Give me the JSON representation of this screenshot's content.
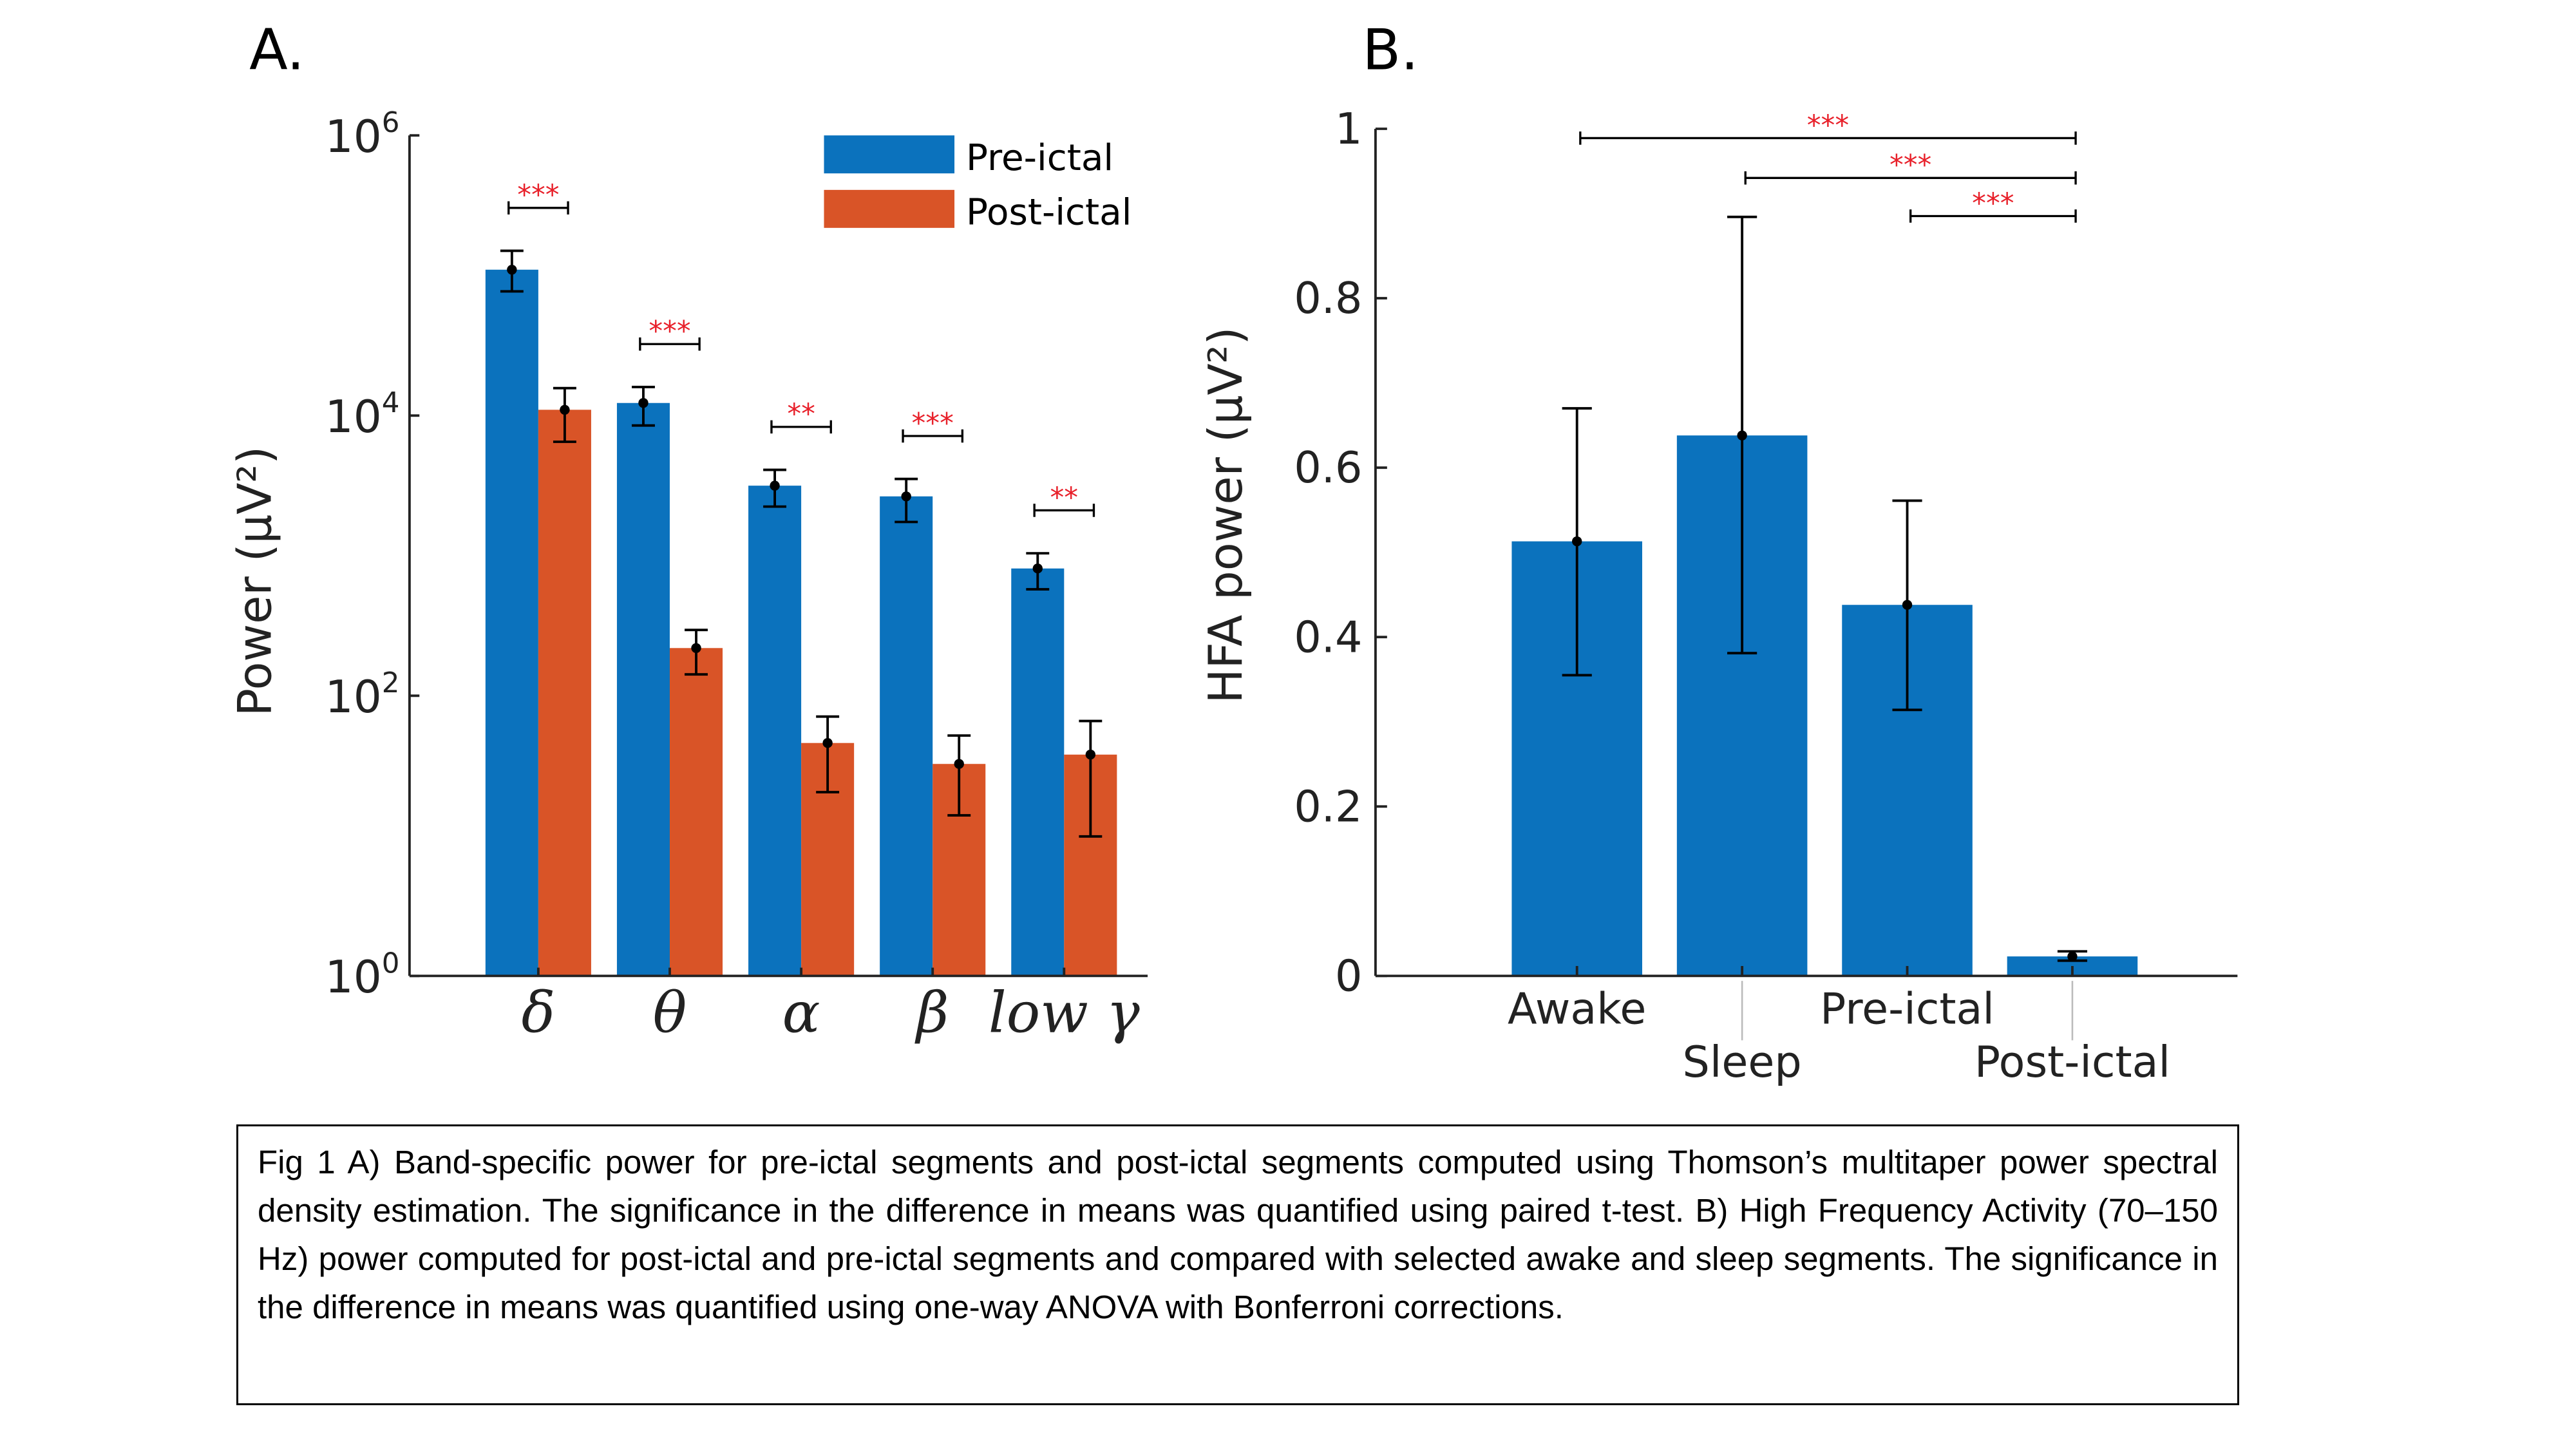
{
  "figure": {
    "panel_a_label": "A.",
    "panel_b_label": "B.",
    "caption": "Fig 1 A) Band-specific power for pre-ictal segments and post-ictal segments computed using Thomson’s multitaper power spectral density estimation. The significance in the difference in means was quantified using paired t-test. B) High Frequency Activity (70–150 Hz) power computed for post-ictal and pre-ictal segments and compared with selected awake and sleep segments. The significance in the difference in means was quantified using one-way ANOVA with Bonferroni corrections."
  },
  "chart_data": [
    {
      "type": "bar",
      "panel": "A",
      "ylabel": "Power (µV²)",
      "yscale": "log",
      "ylim": [
        1,
        1000000
      ],
      "yticks": [
        1,
        100,
        10000,
        1000000
      ],
      "ytick_labels": [
        [
          "10",
          "0"
        ],
        [
          "10",
          "2"
        ],
        [
          "10",
          "4"
        ],
        [
          "10",
          "6"
        ]
      ],
      "categories": [
        "δ",
        "θ",
        "α",
        "β",
        "low γ"
      ],
      "legend_position": "top-right",
      "series": [
        {
          "name": "Pre-ictal",
          "color": "#0b72bd",
          "values": [
            110000,
            12300,
            3160,
            2650,
            810
          ],
          "err_high": [
            150000,
            16000,
            4100,
            3530,
            1040
          ],
          "err_low": [
            77000,
            8500,
            2240,
            1740,
            575
          ]
        },
        {
          "name": "Post-ictal",
          "color": "#d95427",
          "values": [
            11000,
            219,
            46,
            32.6,
            38
          ],
          "err_high": [
            15700,
            295,
            71,
            52,
            66
          ],
          "err_low": [
            6500,
            142,
            20.5,
            14,
            9.9
          ]
        }
      ],
      "significance": [
        "***",
        "***",
        "**",
        "***",
        "**"
      ],
      "significance_color": "#e8202a"
    },
    {
      "type": "bar",
      "panel": "B",
      "ylabel": "HFA power (µV²)",
      "ylim": [
        0,
        1
      ],
      "yticks": [
        0,
        0.2,
        0.4,
        0.6,
        0.8,
        1
      ],
      "ytick_labels": [
        "0",
        "0.2",
        "0.4",
        "0.6",
        "0.8",
        "1"
      ],
      "categories": [
        "Awake",
        "Sleep",
        "Pre-ictal",
        "Post-ictal"
      ],
      "color": "#0b72bd",
      "values": [
        0.513,
        0.638,
        0.438,
        0.023
      ],
      "err_high": [
        0.67,
        0.896,
        0.561,
        0.029
      ],
      "err_low": [
        0.355,
        0.381,
        0.314,
        0.018
      ],
      "comparisons": [
        {
          "from": "Awake",
          "to": "Post-ictal",
          "label": "***",
          "level": 0.989
        },
        {
          "from": "Sleep",
          "to": "Post-ictal",
          "label": "***",
          "level": 0.942
        },
        {
          "from": "Pre-ictal",
          "to": "Post-ictal",
          "label": "***",
          "level": 0.897
        }
      ],
      "significance_color": "#e8202a"
    }
  ]
}
